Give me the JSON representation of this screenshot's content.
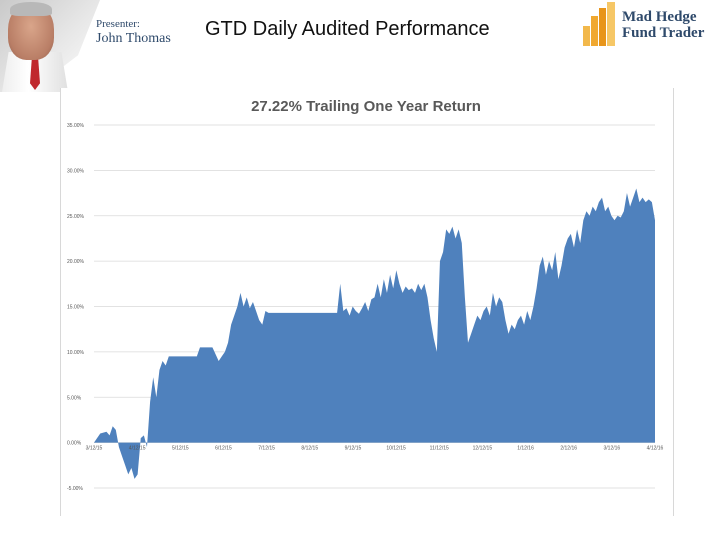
{
  "header": {
    "presenter_label": "Presenter:",
    "presenter_name": "John Thomas",
    "slide_title": "GTD Daily Audited Performance",
    "logo_line1": "Mad Hedge",
    "logo_line2": "Fund Trader"
  },
  "colors": {
    "area_fill": "#4f81bd",
    "gridline": "#d9d9d9",
    "logo_bars": "#f0a830"
  },
  "chart_data": {
    "type": "area",
    "title": "27.22% Trailing One Year Return",
    "xlabel": "",
    "ylabel": "",
    "ylim": [
      -5,
      35
    ],
    "grid": true,
    "legend": "none",
    "y_tick_labels": [
      "35.00%",
      "30.00%",
      "25.00%",
      "20.00%",
      "15.00%",
      "10.00%",
      "5.00%",
      "0.00%",
      "-5.00%"
    ],
    "y_tick_values": [
      35,
      30,
      25,
      20,
      15,
      10,
      5,
      0,
      -5
    ],
    "x_tick_labels": [
      "3/12/15",
      "4/12/15",
      "5/12/15",
      "6/12/15",
      "7/12/15",
      "8/12/15",
      "9/12/15",
      "10/12/15",
      "11/12/15",
      "12/12/15",
      "1/12/16",
      "2/12/16",
      "3/12/16",
      "4/12/16"
    ],
    "series": [
      {
        "values": [
          [
            0,
            0
          ],
          [
            2,
            1
          ],
          [
            4,
            1.2
          ],
          [
            5,
            0.8
          ],
          [
            6,
            1.8
          ],
          [
            7,
            1.4
          ],
          [
            8,
            -0.5
          ],
          [
            9,
            -1.5
          ],
          [
            10,
            -2.5
          ],
          [
            11,
            -3.5
          ],
          [
            12,
            -2.8
          ],
          [
            13,
            -4.0
          ],
          [
            14,
            -3.5
          ],
          [
            15,
            0.5
          ],
          [
            16,
            0.8
          ],
          [
            17,
            -0.5
          ],
          [
            18,
            4.5
          ],
          [
            19,
            7.2
          ],
          [
            20,
            5.0
          ],
          [
            21,
            8.0
          ],
          [
            22,
            9.0
          ],
          [
            23,
            8.5
          ],
          [
            24,
            9.5
          ],
          [
            26,
            9.5
          ],
          [
            30,
            9.5
          ],
          [
            33,
            9.5
          ],
          [
            34,
            10.5
          ],
          [
            36,
            10.5
          ],
          [
            38,
            10.5
          ],
          [
            40,
            9.0
          ],
          [
            41,
            9.5
          ],
          [
            42,
            10.0
          ],
          [
            43,
            11.0
          ],
          [
            44,
            13.0
          ],
          [
            45,
            14.0
          ],
          [
            46,
            15.0
          ],
          [
            47,
            16.5
          ],
          [
            48,
            15.0
          ],
          [
            49,
            16.0
          ],
          [
            50,
            14.8
          ],
          [
            51,
            15.5
          ],
          [
            52,
            14.5
          ],
          [
            53,
            13.5
          ],
          [
            54,
            13.0
          ],
          [
            55,
            14.5
          ],
          [
            56,
            14.3
          ],
          [
            60,
            14.3
          ],
          [
            65,
            14.3
          ],
          [
            70,
            14.3
          ],
          [
            75,
            14.3
          ],
          [
            78,
            14.3
          ],
          [
            79,
            17.5
          ],
          [
            80,
            14.5
          ],
          [
            81,
            14.8
          ],
          [
            82,
            14.0
          ],
          [
            83,
            15.0
          ],
          [
            84,
            14.5
          ],
          [
            85,
            14.2
          ],
          [
            86,
            14.8
          ],
          [
            87,
            15.5
          ],
          [
            88,
            14.5
          ],
          [
            89,
            15.8
          ],
          [
            90,
            16.0
          ],
          [
            91,
            17.5
          ],
          [
            92,
            16.0
          ],
          [
            93,
            18.0
          ],
          [
            94,
            16.5
          ],
          [
            95,
            18.5
          ],
          [
            96,
            17.0
          ],
          [
            97,
            19.0
          ],
          [
            98,
            17.5
          ],
          [
            99,
            16.5
          ],
          [
            100,
            17.2
          ],
          [
            101,
            16.8
          ],
          [
            102,
            17.0
          ],
          [
            103,
            16.5
          ],
          [
            104,
            17.5
          ],
          [
            105,
            16.8
          ],
          [
            106,
            17.5
          ],
          [
            107,
            16.0
          ],
          [
            108,
            13.5
          ],
          [
            109,
            11.5
          ],
          [
            110,
            10.0
          ],
          [
            111,
            20.0
          ],
          [
            112,
            21.0
          ],
          [
            113,
            23.5
          ],
          [
            114,
            23.0
          ],
          [
            115,
            23.8
          ],
          [
            116,
            22.5
          ],
          [
            117,
            23.5
          ],
          [
            118,
            22.0
          ],
          [
            119,
            16.0
          ],
          [
            120,
            11.0
          ],
          [
            121,
            12.0
          ],
          [
            122,
            13.0
          ],
          [
            123,
            14.0
          ],
          [
            124,
            13.5
          ],
          [
            125,
            14.5
          ],
          [
            126,
            15.0
          ],
          [
            127,
            14.0
          ],
          [
            128,
            16.5
          ],
          [
            129,
            15.0
          ],
          [
            130,
            16.0
          ],
          [
            131,
            15.5
          ],
          [
            132,
            13.5
          ],
          [
            133,
            12.0
          ],
          [
            134,
            13.0
          ],
          [
            135,
            12.5
          ],
          [
            136,
            13.5
          ],
          [
            137,
            14.0
          ],
          [
            138,
            13.0
          ],
          [
            139,
            14.5
          ],
          [
            140,
            13.5
          ],
          [
            141,
            15.0
          ],
          [
            142,
            17.0
          ],
          [
            143,
            19.5
          ],
          [
            144,
            20.5
          ],
          [
            145,
            18.5
          ],
          [
            146,
            20.0
          ],
          [
            147,
            19.0
          ],
          [
            148,
            21.0
          ],
          [
            149,
            18.0
          ],
          [
            150,
            19.5
          ],
          [
            151,
            21.5
          ],
          [
            152,
            22.5
          ],
          [
            153,
            23.0
          ],
          [
            154,
            21.5
          ],
          [
            155,
            23.5
          ],
          [
            156,
            22.0
          ],
          [
            157,
            24.5
          ],
          [
            158,
            25.5
          ],
          [
            159,
            25.0
          ],
          [
            160,
            26.0
          ],
          [
            161,
            25.5
          ],
          [
            162,
            26.5
          ],
          [
            163,
            27.0
          ],
          [
            164,
            25.5
          ],
          [
            165,
            26.0
          ],
          [
            166,
            25.0
          ],
          [
            167,
            24.5
          ],
          [
            168,
            25.0
          ],
          [
            169,
            24.8
          ],
          [
            170,
            25.5
          ],
          [
            171,
            27.5
          ],
          [
            172,
            26.0
          ],
          [
            173,
            27.0
          ],
          [
            174,
            28.0
          ],
          [
            175,
            26.5
          ],
          [
            176,
            27.0
          ],
          [
            177,
            26.5
          ],
          [
            178,
            26.8
          ],
          [
            179,
            26.5
          ],
          [
            180,
            24.5
          ]
        ]
      }
    ],
    "x_max": 180
  }
}
